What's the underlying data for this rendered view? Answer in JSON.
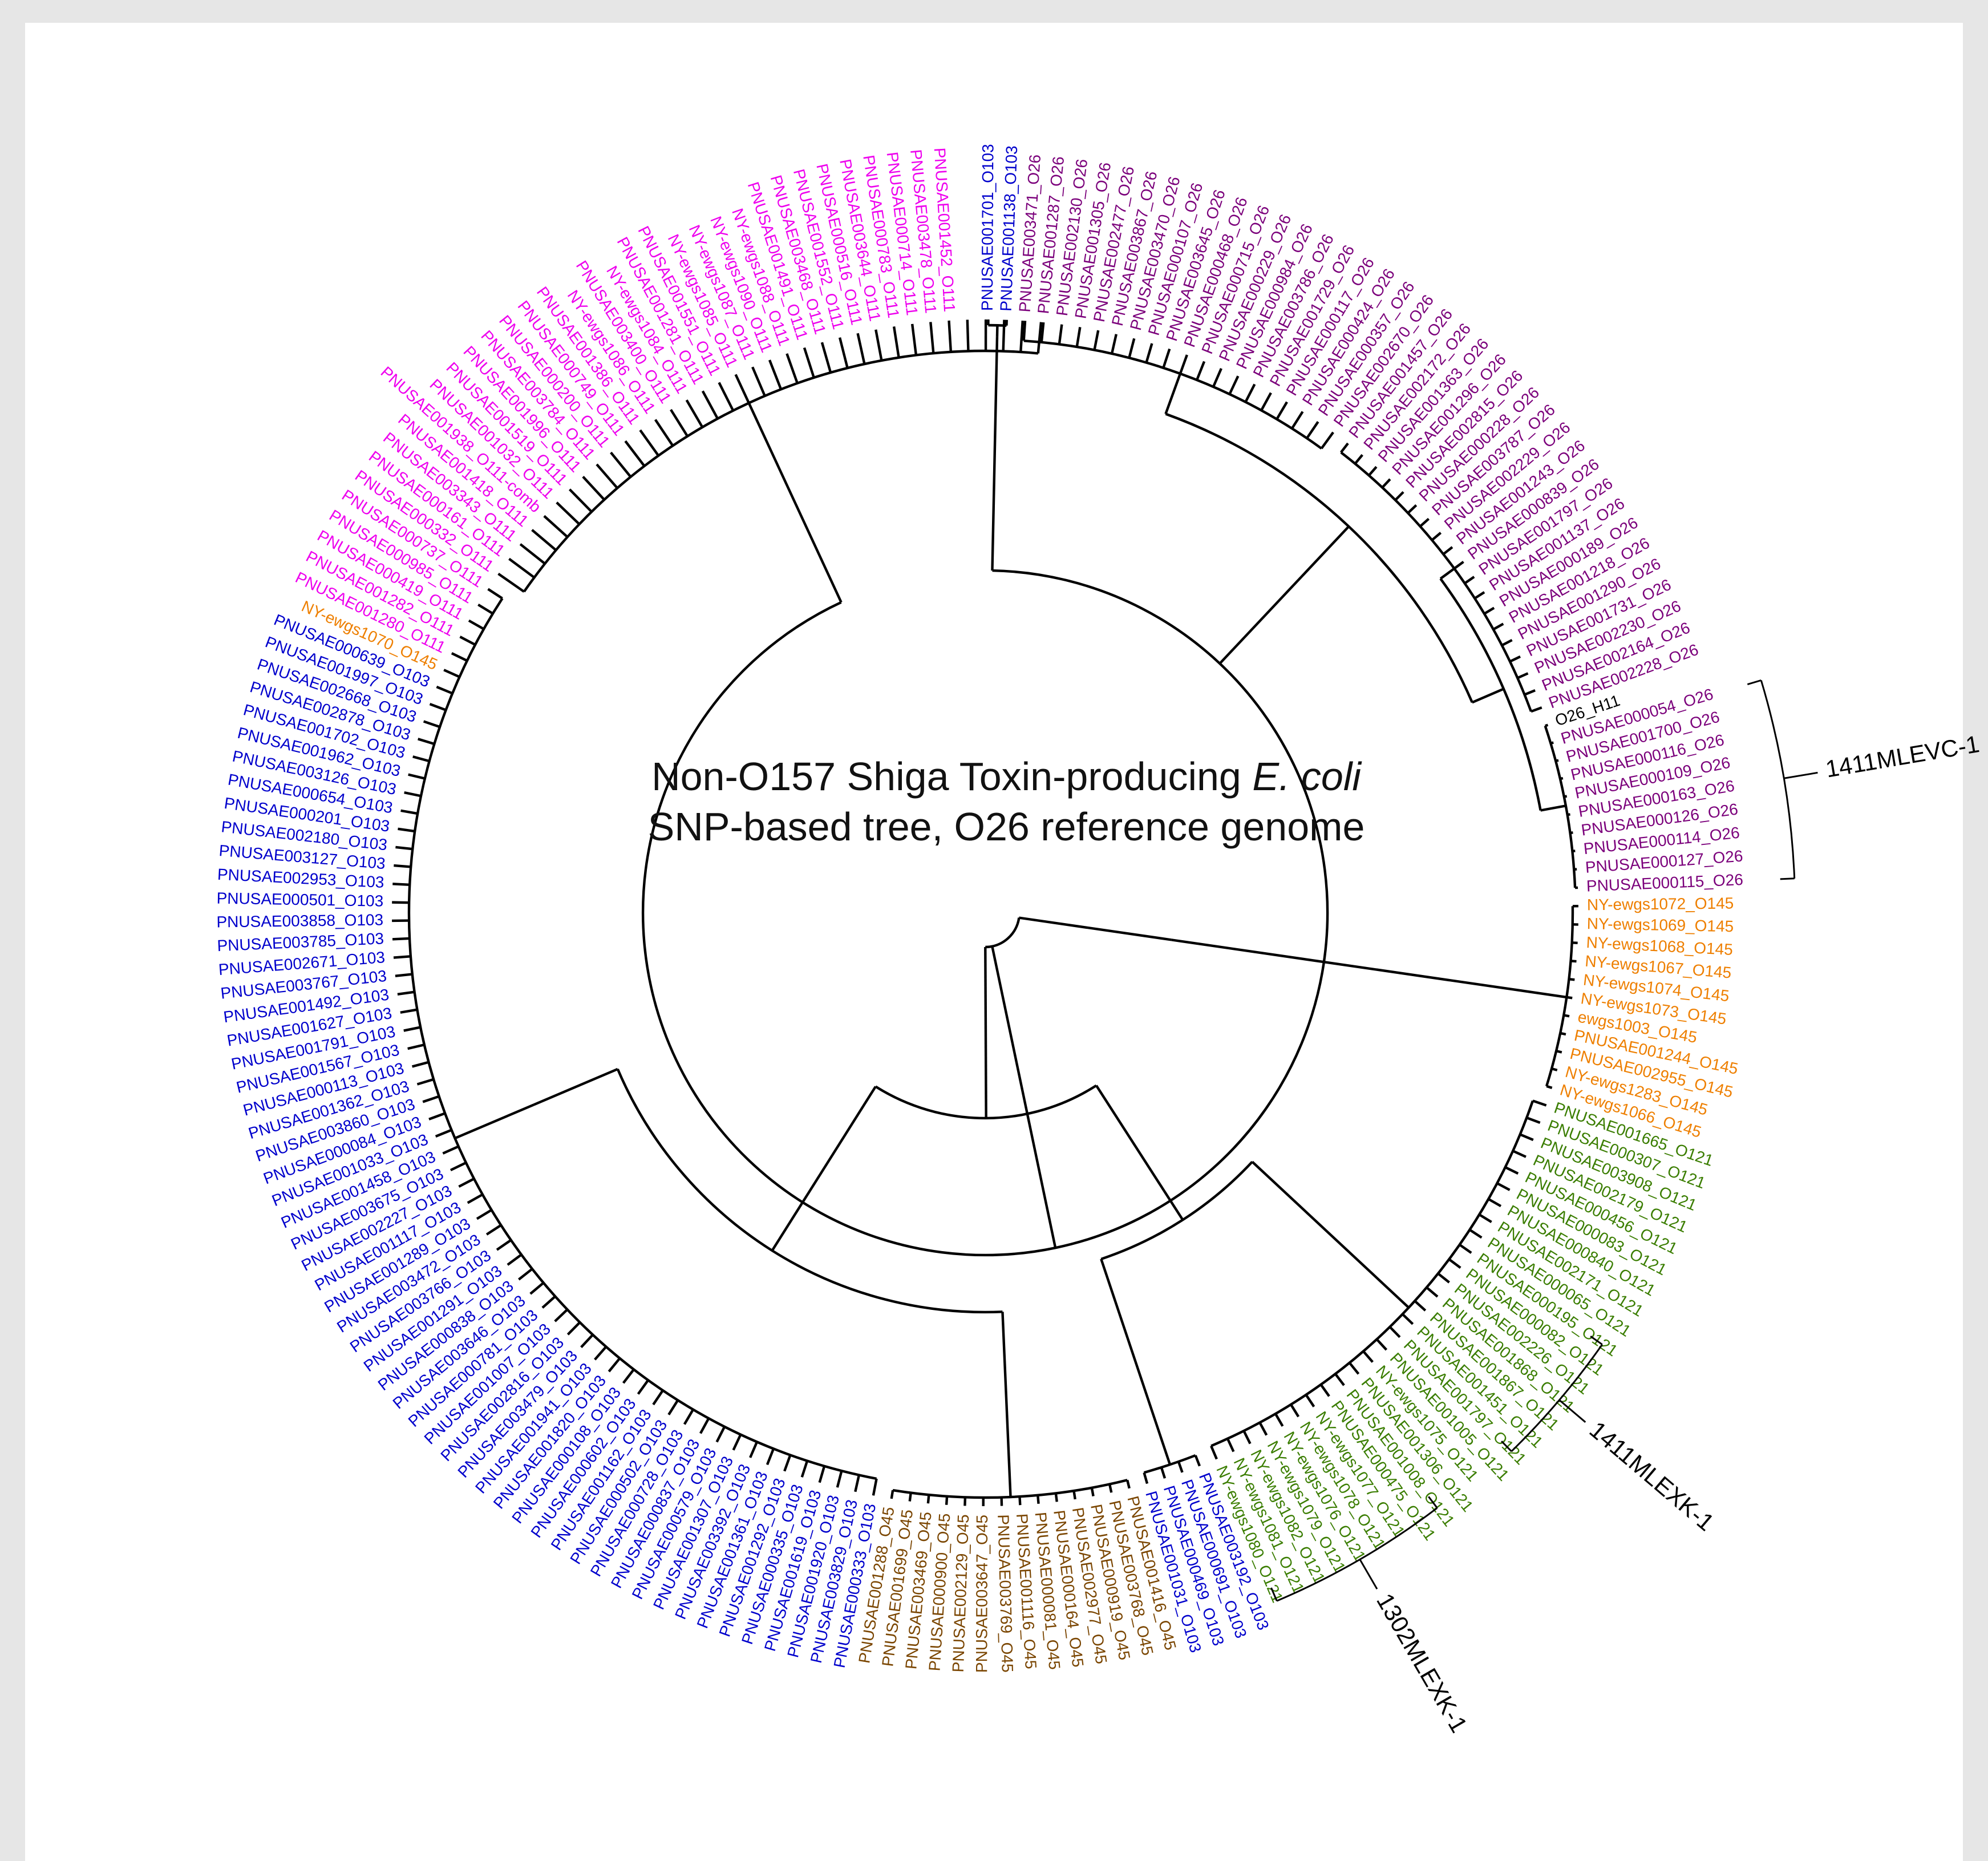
{
  "title": {
    "line1_prefix": "Non-O157 Shiga Toxin-producing ",
    "line1_italic": "E. coli",
    "line2": "SNP-based tree, O26 reference genome"
  },
  "colors": {
    "O26": "#7b007b",
    "O111": "#ee00ee",
    "O103": "#0000cc",
    "O145": "#ee7f00",
    "O121": "#3a7d00",
    "O45": "#7a4500",
    "ref": "#000000"
  },
  "leaves": [
    {
      "label": "PNUSAE001701_O103",
      "group": "O103"
    },
    {
      "label": "PNUSAE001138_O103",
      "group": "O103"
    },
    {
      "label": "PNUSAE003471_O26",
      "group": "O26"
    },
    {
      "label": "PNUSAE001287_O26",
      "group": "O26"
    },
    {
      "label": "PNUSAE002130_O26",
      "group": "O26"
    },
    {
      "label": "PNUSAE001305_O26",
      "group": "O26"
    },
    {
      "label": "PNUSAE002477_O26",
      "group": "O26"
    },
    {
      "label": "PNUSAE003867_O26",
      "group": "O26"
    },
    {
      "label": "PNUSAE003470_O26",
      "group": "O26"
    },
    {
      "label": "PNUSAE000107_O26",
      "group": "O26"
    },
    {
      "label": "PNUSAE003645_O26",
      "group": "O26"
    },
    {
      "label": "PNUSAE000468_O26",
      "group": "O26"
    },
    {
      "label": "PNUSAE000715_O26",
      "group": "O26"
    },
    {
      "label": "PNUSAE000229_O26",
      "group": "O26"
    },
    {
      "label": "PNUSAE000984_O26",
      "group": "O26"
    },
    {
      "label": "PNUSAE003786_O26",
      "group": "O26"
    },
    {
      "label": "PNUSAE001729_O26",
      "group": "O26"
    },
    {
      "label": "PNUSAE000117_O26",
      "group": "O26"
    },
    {
      "label": "PNUSAE000424_O26",
      "group": "O26"
    },
    {
      "label": "PNUSAE000357_O26",
      "group": "O26"
    },
    {
      "label": "PNUSAE002670_O26",
      "group": "O26"
    },
    {
      "label": "PNUSAE001457_O26",
      "group": "O26"
    },
    {
      "label": "PNUSAE002172_O26",
      "group": "O26"
    },
    {
      "label": "PNUSAE001363_O26",
      "group": "O26"
    },
    {
      "label": "PNUSAE001296_O26",
      "group": "O26"
    },
    {
      "label": "PNUSAE002815_O26",
      "group": "O26"
    },
    {
      "label": "PNUSAE000228_O26",
      "group": "O26"
    },
    {
      "label": "PNUSAE003787_O26",
      "group": "O26"
    },
    {
      "label": "PNUSAE002229_O26",
      "group": "O26"
    },
    {
      "label": "PNUSAE001243_O26",
      "group": "O26"
    },
    {
      "label": "PNUSAE000839_O26",
      "group": "O26"
    },
    {
      "label": "PNUSAE001797_O26",
      "group": "O26"
    },
    {
      "label": "PNUSAE001137_O26",
      "group": "O26"
    },
    {
      "label": "PNUSAE000189_O26",
      "group": "O26"
    },
    {
      "label": "PNUSAE001218_O26",
      "group": "O26"
    },
    {
      "label": "PNUSAE001290_O26",
      "group": "O26"
    },
    {
      "label": "PNUSAE001731_O26",
      "group": "O26"
    },
    {
      "label": "PNUSAE002230_O26",
      "group": "O26"
    },
    {
      "label": "PNUSAE002164_O26",
      "group": "O26"
    },
    {
      "label": "PNUSAE002228_O26",
      "group": "O26"
    },
    {
      "label": "O26_H11",
      "group": "ref"
    },
    {
      "label": "PNUSAE000054_O26",
      "group": "O26"
    },
    {
      "label": "PNUSAE001700_O26",
      "group": "O26"
    },
    {
      "label": "PNUSAE000116_O26",
      "group": "O26"
    },
    {
      "label": "PNUSAE000109_O26",
      "group": "O26"
    },
    {
      "label": "PNUSAE000163_O26",
      "group": "O26"
    },
    {
      "label": "PNUSAE000126_O26",
      "group": "O26"
    },
    {
      "label": "PNUSAE000114_O26",
      "group": "O26"
    },
    {
      "label": "PNUSAE000127_O26",
      "group": "O26"
    },
    {
      "label": "PNUSAE000115_O26",
      "group": "O26"
    },
    {
      "label": "NY-ewgs1072_O145",
      "group": "O145"
    },
    {
      "label": "NY-ewgs1069_O145",
      "group": "O145"
    },
    {
      "label": "NY-ewgs1068_O145",
      "group": "O145"
    },
    {
      "label": "NY-ewgs1067_O145",
      "group": "O145"
    },
    {
      "label": "NY-ewgs1074_O145",
      "group": "O145"
    },
    {
      "label": "NY-ewgs1073_O145",
      "group": "O145"
    },
    {
      "label": "ewgs1003_O145",
      "group": "O145"
    },
    {
      "label": "PNUSAE001244_O145",
      "group": "O145"
    },
    {
      "label": "PNUSAE002955_O145",
      "group": "O145"
    },
    {
      "label": "NY-ewgs1283_O145",
      "group": "O145"
    },
    {
      "label": "NY-ewgs1066_O145",
      "group": "O145"
    },
    {
      "label": "PNUSAE001665_O121",
      "group": "O121"
    },
    {
      "label": "PNUSAE000307_O121",
      "group": "O121"
    },
    {
      "label": "PNUSAE003908_O121",
      "group": "O121"
    },
    {
      "label": "PNUSAE002179_O121",
      "group": "O121"
    },
    {
      "label": "PNUSAE000456_O121",
      "group": "O121"
    },
    {
      "label": "PNUSAE000083_O121",
      "group": "O121"
    },
    {
      "label": "PNUSAE000840_O121",
      "group": "O121"
    },
    {
      "label": "PNUSAE002171_O121",
      "group": "O121"
    },
    {
      "label": "PNUSAE000065_O121",
      "group": "O121"
    },
    {
      "label": "PNUSAE000195_O121",
      "group": "O121"
    },
    {
      "label": "PNUSAE000082_O121",
      "group": "O121"
    },
    {
      "label": "PNUSAE002226_O121",
      "group": "O121"
    },
    {
      "label": "PNUSAE001868_O121",
      "group": "O121"
    },
    {
      "label": "PNUSAE001867_O121",
      "group": "O121"
    },
    {
      "label": "PNUSAE001451_O121",
      "group": "O121"
    },
    {
      "label": "PNUSAE001797_O121",
      "group": "O121"
    },
    {
      "label": "PNUSAE001005_O121",
      "group": "O121"
    },
    {
      "label": "NY-ewgs1075_O121",
      "group": "O121"
    },
    {
      "label": "PNUSAE001306_O121",
      "group": "O121"
    },
    {
      "label": "PNUSAE001008_O121",
      "group": "O121"
    },
    {
      "label": "PNUSAE000475_O121",
      "group": "O121"
    },
    {
      "label": "NY-ewgs1077_O121",
      "group": "O121"
    },
    {
      "label": "NY-ewgs1078_O121",
      "group": "O121"
    },
    {
      "label": "NY-ewgs1076_O121",
      "group": "O121"
    },
    {
      "label": "NY-ewgs1079_O121",
      "group": "O121"
    },
    {
      "label": "NY-ewgs1082_O121",
      "group": "O121"
    },
    {
      "label": "NY-ewgs1081_O121",
      "group": "O121"
    },
    {
      "label": "NY-ewgs1080_O121",
      "group": "O121"
    },
    {
      "label": "PNUSAE003192_O103",
      "group": "O103"
    },
    {
      "label": "PNUSAE000691_O103",
      "group": "O103"
    },
    {
      "label": "PNUSAE000469_O103",
      "group": "O103"
    },
    {
      "label": "PNUSAE001031_O103",
      "group": "O103"
    },
    {
      "label": "PNUSAE001416_O45",
      "group": "O45"
    },
    {
      "label": "PNUSAE003768_O45",
      "group": "O45"
    },
    {
      "label": "PNUSAE000919_O45",
      "group": "O45"
    },
    {
      "label": "PNUSAE002977_O45",
      "group": "O45"
    },
    {
      "label": "PNUSAE000164_O45",
      "group": "O45"
    },
    {
      "label": "PNUSAE000081_O45",
      "group": "O45"
    },
    {
      "label": "PNUSAE001116_O45",
      "group": "O45"
    },
    {
      "label": "PNUSAE003769_O45",
      "group": "O45"
    },
    {
      "label": "PNUSAE003647_O45",
      "group": "O45"
    },
    {
      "label": "PNUSAE002129_O45",
      "group": "O45"
    },
    {
      "label": "PNUSAE000900_O45",
      "group": "O45"
    },
    {
      "label": "PNUSAE003469_O45",
      "group": "O45"
    },
    {
      "label": "PNUSAE001699_O45",
      "group": "O45"
    },
    {
      "label": "PNUSAE001288_O45",
      "group": "O45"
    },
    {
      "label": "PNUSAE000333_O103",
      "group": "O103"
    },
    {
      "label": "PNUSAE003829_O103",
      "group": "O103"
    },
    {
      "label": "PNUSAE001920_O103",
      "group": "O103"
    },
    {
      "label": "PNUSAE001619_O103",
      "group": "O103"
    },
    {
      "label": "PNUSAE000335_O103",
      "group": "O103"
    },
    {
      "label": "PNUSAE001292_O103",
      "group": "O103"
    },
    {
      "label": "PNUSAE001361_O103",
      "group": "O103"
    },
    {
      "label": "PNUSAE003392_O103",
      "group": "O103"
    },
    {
      "label": "PNUSAE001307_O103",
      "group": "O103"
    },
    {
      "label": "PNUSAE000579_O103",
      "group": "O103"
    },
    {
      "label": "PNUSAE000837_O103",
      "group": "O103"
    },
    {
      "label": "PNUSAE000728_O103",
      "group": "O103"
    },
    {
      "label": "PNUSAE000502_O103",
      "group": "O103"
    },
    {
      "label": "PNUSAE001162_O103",
      "group": "O103"
    },
    {
      "label": "PNUSAE000602_O103",
      "group": "O103"
    },
    {
      "label": "PNUSAE000108_O103",
      "group": "O103"
    },
    {
      "label": "PNUSAE001820_O103",
      "group": "O103"
    },
    {
      "label": "PNUSAE001941_O103",
      "group": "O103"
    },
    {
      "label": "PNUSAE003479_O103",
      "group": "O103"
    },
    {
      "label": "PNUSAE002816_O103",
      "group": "O103"
    },
    {
      "label": "PNUSAE001007_O103",
      "group": "O103"
    },
    {
      "label": "PNUSAE000781_O103",
      "group": "O103"
    },
    {
      "label": "PNUSAE003646_O103",
      "group": "O103"
    },
    {
      "label": "PNUSAE000838_O103",
      "group": "O103"
    },
    {
      "label": "PNUSAE001291_O103",
      "group": "O103"
    },
    {
      "label": "PNUSAE003766_O103",
      "group": "O103"
    },
    {
      "label": "PNUSAE003472_O103",
      "group": "O103"
    },
    {
      "label": "PNUSAE001289_O103",
      "group": "O103"
    },
    {
      "label": "PNUSAE001117_O103",
      "group": "O103"
    },
    {
      "label": "PNUSAE002227_O103",
      "group": "O103"
    },
    {
      "label": "PNUSAE003675_O103",
      "group": "O103"
    },
    {
      "label": "PNUSAE001458_O103",
      "group": "O103"
    },
    {
      "label": "PNUSAE001033_O103",
      "group": "O103"
    },
    {
      "label": "PNUSAE000084_O103",
      "group": "O103"
    },
    {
      "label": "PNUSAE003860_O103",
      "group": "O103"
    },
    {
      "label": "PNUSAE001362_O103",
      "group": "O103"
    },
    {
      "label": "PNUSAE000113_O103",
      "group": "O103"
    },
    {
      "label": "PNUSAE001567_O103",
      "group": "O103"
    },
    {
      "label": "PNUSAE001791_O103",
      "group": "O103"
    },
    {
      "label": "PNUSAE001627_O103",
      "group": "O103"
    },
    {
      "label": "PNUSAE001492_O103",
      "group": "O103"
    },
    {
      "label": "PNUSAE003767_O103",
      "group": "O103"
    },
    {
      "label": "PNUSAE002671_O103",
      "group": "O103"
    },
    {
      "label": "PNUSAE003785_O103",
      "group": "O103"
    },
    {
      "label": "PNUSAE003858_O103",
      "group": "O103"
    },
    {
      "label": "PNUSAE000501_O103",
      "group": "O103"
    },
    {
      "label": "PNUSAE002953_O103",
      "group": "O103"
    },
    {
      "label": "PNUSAE003127_O103",
      "group": "O103"
    },
    {
      "label": "PNUSAE002180_O103",
      "group": "O103"
    },
    {
      "label": "PNUSAE000201_O103",
      "group": "O103"
    },
    {
      "label": "PNUSAE000654_O103",
      "group": "O103"
    },
    {
      "label": "PNUSAE003126_O103",
      "group": "O103"
    },
    {
      "label": "PNUSAE001962_O103",
      "group": "O103"
    },
    {
      "label": "PNUSAE001702_O103",
      "group": "O103"
    },
    {
      "label": "PNUSAE002878_O103",
      "group": "O103"
    },
    {
      "label": "PNUSAE002668_O103",
      "group": "O103"
    },
    {
      "label": "PNUSAE001997_O103",
      "group": "O103"
    },
    {
      "label": "PNUSAE000639_O103",
      "group": "O103"
    },
    {
      "label": "NY-ewgs1070_O145",
      "group": "O145"
    },
    {
      "label": "PNUSAE001280_O111",
      "group": "O111"
    },
    {
      "label": "PNUSAE001282_O111",
      "group": "O111"
    },
    {
      "label": "PNUSAE000419_O111",
      "group": "O111"
    },
    {
      "label": "PNUSAE000985_O111",
      "group": "O111"
    },
    {
      "label": "PNUSAE000737_O111",
      "group": "O111"
    },
    {
      "label": "PNUSAE000332_O111",
      "group": "O111"
    },
    {
      "label": "PNUSAE000161_O111",
      "group": "O111"
    },
    {
      "label": "PNUSAE003343_O111",
      "group": "O111"
    },
    {
      "label": "PNUSAE001418_O111",
      "group": "O111"
    },
    {
      "label": "PNUSAE001938_O111-comb",
      "group": "O111"
    },
    {
      "label": "PNUSAE001032_O111",
      "group": "O111"
    },
    {
      "label": "PNUSAE001519_O111",
      "group": "O111"
    },
    {
      "label": "PNUSAE001996_O111",
      "group": "O111"
    },
    {
      "label": "PNUSAE003784_O111",
      "group": "O111"
    },
    {
      "label": "PNUSAE000200_O111",
      "group": "O111"
    },
    {
      "label": "PNUSAE000749_O111",
      "group": "O111"
    },
    {
      "label": "PNUSAE001386_O111",
      "group": "O111"
    },
    {
      "label": "NY-ewgs1086_O111",
      "group": "O111"
    },
    {
      "label": "PNUSAE003400_O111",
      "group": "O111"
    },
    {
      "label": "NY-ewgs1084_O111",
      "group": "O111"
    },
    {
      "label": "PNUSAE001281_O111",
      "group": "O111"
    },
    {
      "label": "PNUSAE001551_O111",
      "group": "O111"
    },
    {
      "label": "NY-ewgs1085_O111",
      "group": "O111"
    },
    {
      "label": "NY-ewgs1087_O111",
      "group": "O111"
    },
    {
      "label": "NY-ewgs1090_O111",
      "group": "O111"
    },
    {
      "label": "NY-ewgs1088_O111",
      "group": "O111"
    },
    {
      "label": "PNUSAE001491_O111",
      "group": "O111"
    },
    {
      "label": "PNUSAE003468_O111",
      "group": "O111"
    },
    {
      "label": "PNUSAE001552_O111",
      "group": "O111"
    },
    {
      "label": "PNUSAE000516_O111",
      "group": "O111"
    },
    {
      "label": "PNUSAE003644_O111",
      "group": "O111"
    },
    {
      "label": "PNUSAE000783_O111",
      "group": "O111"
    },
    {
      "label": "PNUSAE000714_O111",
      "group": "O111"
    },
    {
      "label": "PNUSAE003478_O111",
      "group": "O111"
    },
    {
      "label": "PNUSAE001452_O111",
      "group": "O111"
    }
  ],
  "clade_brackets": [
    {
      "label": "1411MLEVC-1"
    },
    {
      "label": "1411MLEXK-1"
    },
    {
      "label": "1302MLEXK-1"
    }
  ]
}
